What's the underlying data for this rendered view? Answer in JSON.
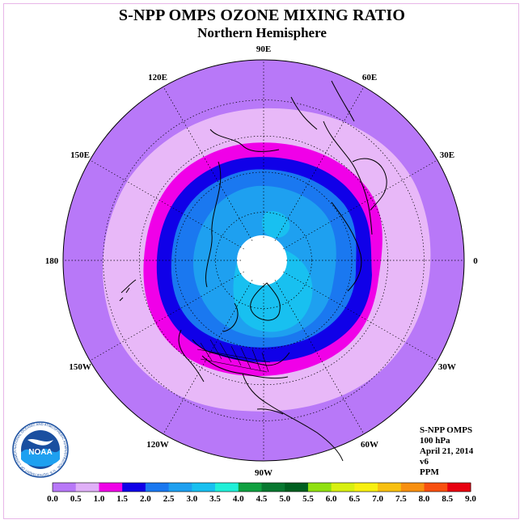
{
  "title": "S-NPP OMPS OZONE MIXING RATIO",
  "subtitle": "Northern Hemisphere",
  "longitude_labels": [
    {
      "text": "90E",
      "lon": 90
    },
    {
      "text": "60E",
      "lon": 60
    },
    {
      "text": "30E",
      "lon": 30
    },
    {
      "text": "0",
      "lon": 0
    },
    {
      "text": "30W",
      "lon": -30
    },
    {
      "text": "60W",
      "lon": -60
    },
    {
      "text": "90W",
      "lon": -90
    },
    {
      "text": "120W",
      "lon": -120
    },
    {
      "text": "150W",
      "lon": -150
    },
    {
      "text": "180",
      "lon": 180
    },
    {
      "text": "150E",
      "lon": 150
    },
    {
      "text": "120E",
      "lon": 120
    }
  ],
  "info": {
    "instrument": "S-NPP OMPS",
    "level": "100 hPa",
    "date": "April 21, 2014",
    "version": "v6",
    "units": "PPM"
  },
  "logo": {
    "text": "NOAA",
    "ring_text": "NATIONAL OCEANIC AND ATMOSPHERIC ADMINISTRATION · U.S. DEPARTMENT OF COMMERCE"
  },
  "colors": {
    "outer_bg": "#b878f8",
    "band_05_10": "#e8b8f8",
    "band_10_15": "#f000e8",
    "band_15_20": "#1000e8",
    "band_20_25": "#1a78f0",
    "band_25_30": "#1ea0f0",
    "band_30_35": "#18c0f0",
    "polar_gap": "#ffffff"
  },
  "chart_data": {
    "type": "heatmap",
    "projection": "north-polar-stereographic",
    "units": "PPM",
    "level": "100 hPa",
    "scale_ticks": [
      "0.0",
      "0.5",
      "1.0",
      "1.5",
      "2.0",
      "2.5",
      "3.0",
      "3.5",
      "4.0",
      "4.5",
      "5.0",
      "5.5",
      "6.0",
      "6.5",
      "7.0",
      "7.5",
      "8.0",
      "8.5",
      "9.0"
    ],
    "scale_colors": [
      "#b878f8",
      "#e0b0f8",
      "#f000e8",
      "#1000e8",
      "#1a78f0",
      "#1ea0f0",
      "#18c0f0",
      "#20f0d8",
      "#10a040",
      "#087830",
      "#006020",
      "#90e010",
      "#d8f010",
      "#f8f010",
      "#f8c010",
      "#f89010",
      "#f85010",
      "#e80010",
      "#885030"
    ]
  }
}
